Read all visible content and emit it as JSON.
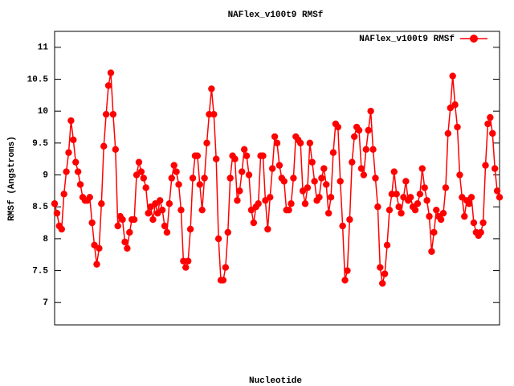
{
  "chart_data": {
    "type": "line",
    "title": "NAFlex_v100t9 RMSf",
    "x_label": "Nucleotide",
    "y_label": "RMSf (Angstroms)",
    "legend_position": "top-right",
    "ylim": [
      6.65,
      11.25
    ],
    "yticks": [
      7,
      7.5,
      8,
      8.5,
      9,
      9.5,
      10,
      10.5,
      11
    ],
    "grid": false,
    "series": [
      {
        "name": "NAFlex_v100t9 RMSf",
        "color": "#ff0000",
        "values": [
          8.55,
          8.4,
          8.2,
          8.15,
          8.7,
          9.05,
          9.35,
          9.85,
          9.55,
          9.2,
          9.05,
          8.85,
          8.65,
          8.6,
          8.6,
          8.65,
          8.25,
          7.9,
          7.6,
          7.85,
          8.55,
          9.45,
          9.95,
          10.4,
          10.6,
          9.95,
          9.4,
          8.2,
          8.35,
          8.3,
          7.95,
          7.85,
          8.1,
          8.3,
          8.3,
          9.0,
          9.2,
          9.05,
          8.95,
          8.8,
          8.4,
          8.5,
          8.3,
          8.55,
          8.4,
          8.6,
          8.45,
          8.2,
          8.1,
          8.55,
          8.95,
          9.15,
          9.05,
          8.85,
          8.45,
          7.65,
          7.55,
          7.65,
          8.15,
          8.95,
          9.3,
          9.3,
          8.85,
          8.45,
          8.95,
          9.5,
          9.95,
          10.35,
          9.95,
          9.25,
          8.0,
          7.35,
          7.35,
          7.55,
          8.1,
          8.95,
          9.3,
          9.25,
          8.6,
          8.75,
          9.05,
          9.4,
          9.3,
          9.0,
          8.45,
          8.25,
          8.5,
          8.55,
          9.3,
          9.3,
          8.6,
          8.15,
          8.65,
          9.1,
          9.6,
          9.5,
          9.15,
          8.95,
          8.9,
          8.45,
          8.45,
          8.55,
          8.95,
          9.6,
          9.55,
          9.5,
          8.75,
          8.55,
          8.8,
          9.5,
          9.2,
          8.9,
          8.6,
          8.65,
          8.95,
          9.1,
          8.85,
          8.4,
          8.65,
          9.35,
          9.8,
          9.75,
          8.9,
          8.2,
          7.35,
          7.5,
          8.3,
          9.2,
          9.6,
          9.75,
          9.7,
          9.1,
          9.0,
          9.4,
          9.7,
          10.0,
          9.4,
          8.95,
          8.5,
          7.55,
          7.3,
          7.45,
          7.9,
          8.45,
          8.7,
          9.05,
          8.7,
          8.5,
          8.4,
          8.65,
          8.9,
          8.6,
          8.65,
          8.5,
          8.45,
          8.55,
          8.7,
          9.1,
          8.8,
          8.6,
          8.35,
          7.8,
          8.1,
          8.45,
          8.35,
          8.3,
          8.4,
          8.8,
          9.65,
          10.05,
          10.55,
          10.1,
          9.75,
          9.0,
          8.65,
          8.35,
          8.6,
          8.55,
          8.65,
          8.25,
          8.1,
          8.05,
          8.1,
          8.25,
          9.15,
          9.8,
          9.9,
          9.65,
          9.1,
          8.75,
          8.65
        ]
      }
    ]
  }
}
